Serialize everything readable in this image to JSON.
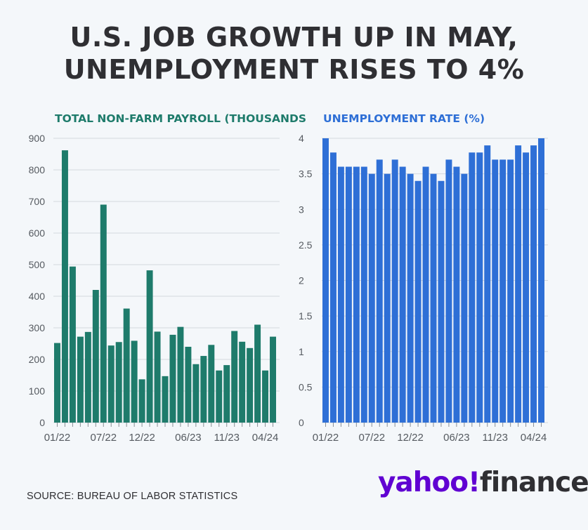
{
  "headline": {
    "line1": "U.S. JOB GROWTH UP IN MAY,",
    "line2": "UNEMPLOYMENT RISES TO 4%"
  },
  "source": "SOURCE: BUREAU OF LABOR STATISTICS",
  "logo": {
    "part1": "yahoo!",
    "part2": "finance",
    "colors": {
      "yahoo": "#6001d2",
      "finance": "#2f2f33"
    }
  },
  "chart_data": [
    {
      "type": "bar",
      "title": "TOTAL NON-FARM PAYROLL (THOUSANDS",
      "color": "#1e7b6b",
      "title_color": "#1e7b6b",
      "grid": true,
      "ylim": [
        0,
        900
      ],
      "yticks": [
        0,
        100,
        200,
        300,
        400,
        500,
        600,
        700,
        800,
        900
      ],
      "xtick_labels": [
        "01/22",
        "07/22",
        "12/22",
        "06/23",
        "11/23",
        "04/24"
      ],
      "xtick_index": [
        0,
        6,
        11,
        17,
        22,
        27
      ],
      "categories": [
        "01/22",
        "02/22",
        "03/22",
        "04/22",
        "05/22",
        "06/22",
        "07/22",
        "08/22",
        "09/22",
        "10/22",
        "11/22",
        "12/22",
        "01/23",
        "02/23",
        "03/23",
        "04/23",
        "05/23",
        "06/23",
        "07/23",
        "08/23",
        "09/23",
        "10/23",
        "11/23",
        "12/23",
        "01/24",
        "02/24",
        "03/24",
        "04/24",
        "05/24"
      ],
      "values": [
        252,
        862,
        494,
        272,
        287,
        420,
        690,
        244,
        255,
        361,
        259,
        137,
        482,
        288,
        147,
        278,
        303,
        240,
        185,
        211,
        246,
        165,
        182,
        290,
        256,
        236,
        310,
        165,
        272
      ]
    },
    {
      "type": "bar",
      "title": "UNEMPLOYMENT RATE (%)",
      "color": "#2e6fd6",
      "title_color": "#2e6fd6",
      "grid": true,
      "ylim": [
        0,
        4
      ],
      "yticks": [
        0,
        0.5,
        1,
        1.5,
        2,
        2.5,
        3,
        3.5,
        4
      ],
      "ytick_labels": [
        "0",
        "0.5",
        "1",
        "1.5",
        "2",
        "2.5",
        "3",
        "3.5",
        "4"
      ],
      "xtick_labels": [
        "01/22",
        "07/22",
        "12/22",
        "06/23",
        "11/23",
        "04/24"
      ],
      "xtick_index": [
        0,
        6,
        11,
        17,
        22,
        27
      ],
      "categories": [
        "01/22",
        "02/22",
        "03/22",
        "04/22",
        "05/22",
        "06/22",
        "07/22",
        "08/22",
        "09/22",
        "10/22",
        "11/22",
        "12/22",
        "01/23",
        "02/23",
        "03/23",
        "04/23",
        "05/23",
        "06/23",
        "07/23",
        "08/23",
        "09/23",
        "10/23",
        "11/23",
        "12/23",
        "01/24",
        "02/24",
        "03/24",
        "04/24",
        "05/24"
      ],
      "values": [
        4.0,
        3.8,
        3.6,
        3.6,
        3.6,
        3.6,
        3.5,
        3.7,
        3.5,
        3.7,
        3.6,
        3.5,
        3.4,
        3.6,
        3.5,
        3.4,
        3.7,
        3.6,
        3.5,
        3.8,
        3.8,
        3.9,
        3.7,
        3.7,
        3.7,
        3.9,
        3.8,
        3.9,
        4.0
      ]
    }
  ]
}
